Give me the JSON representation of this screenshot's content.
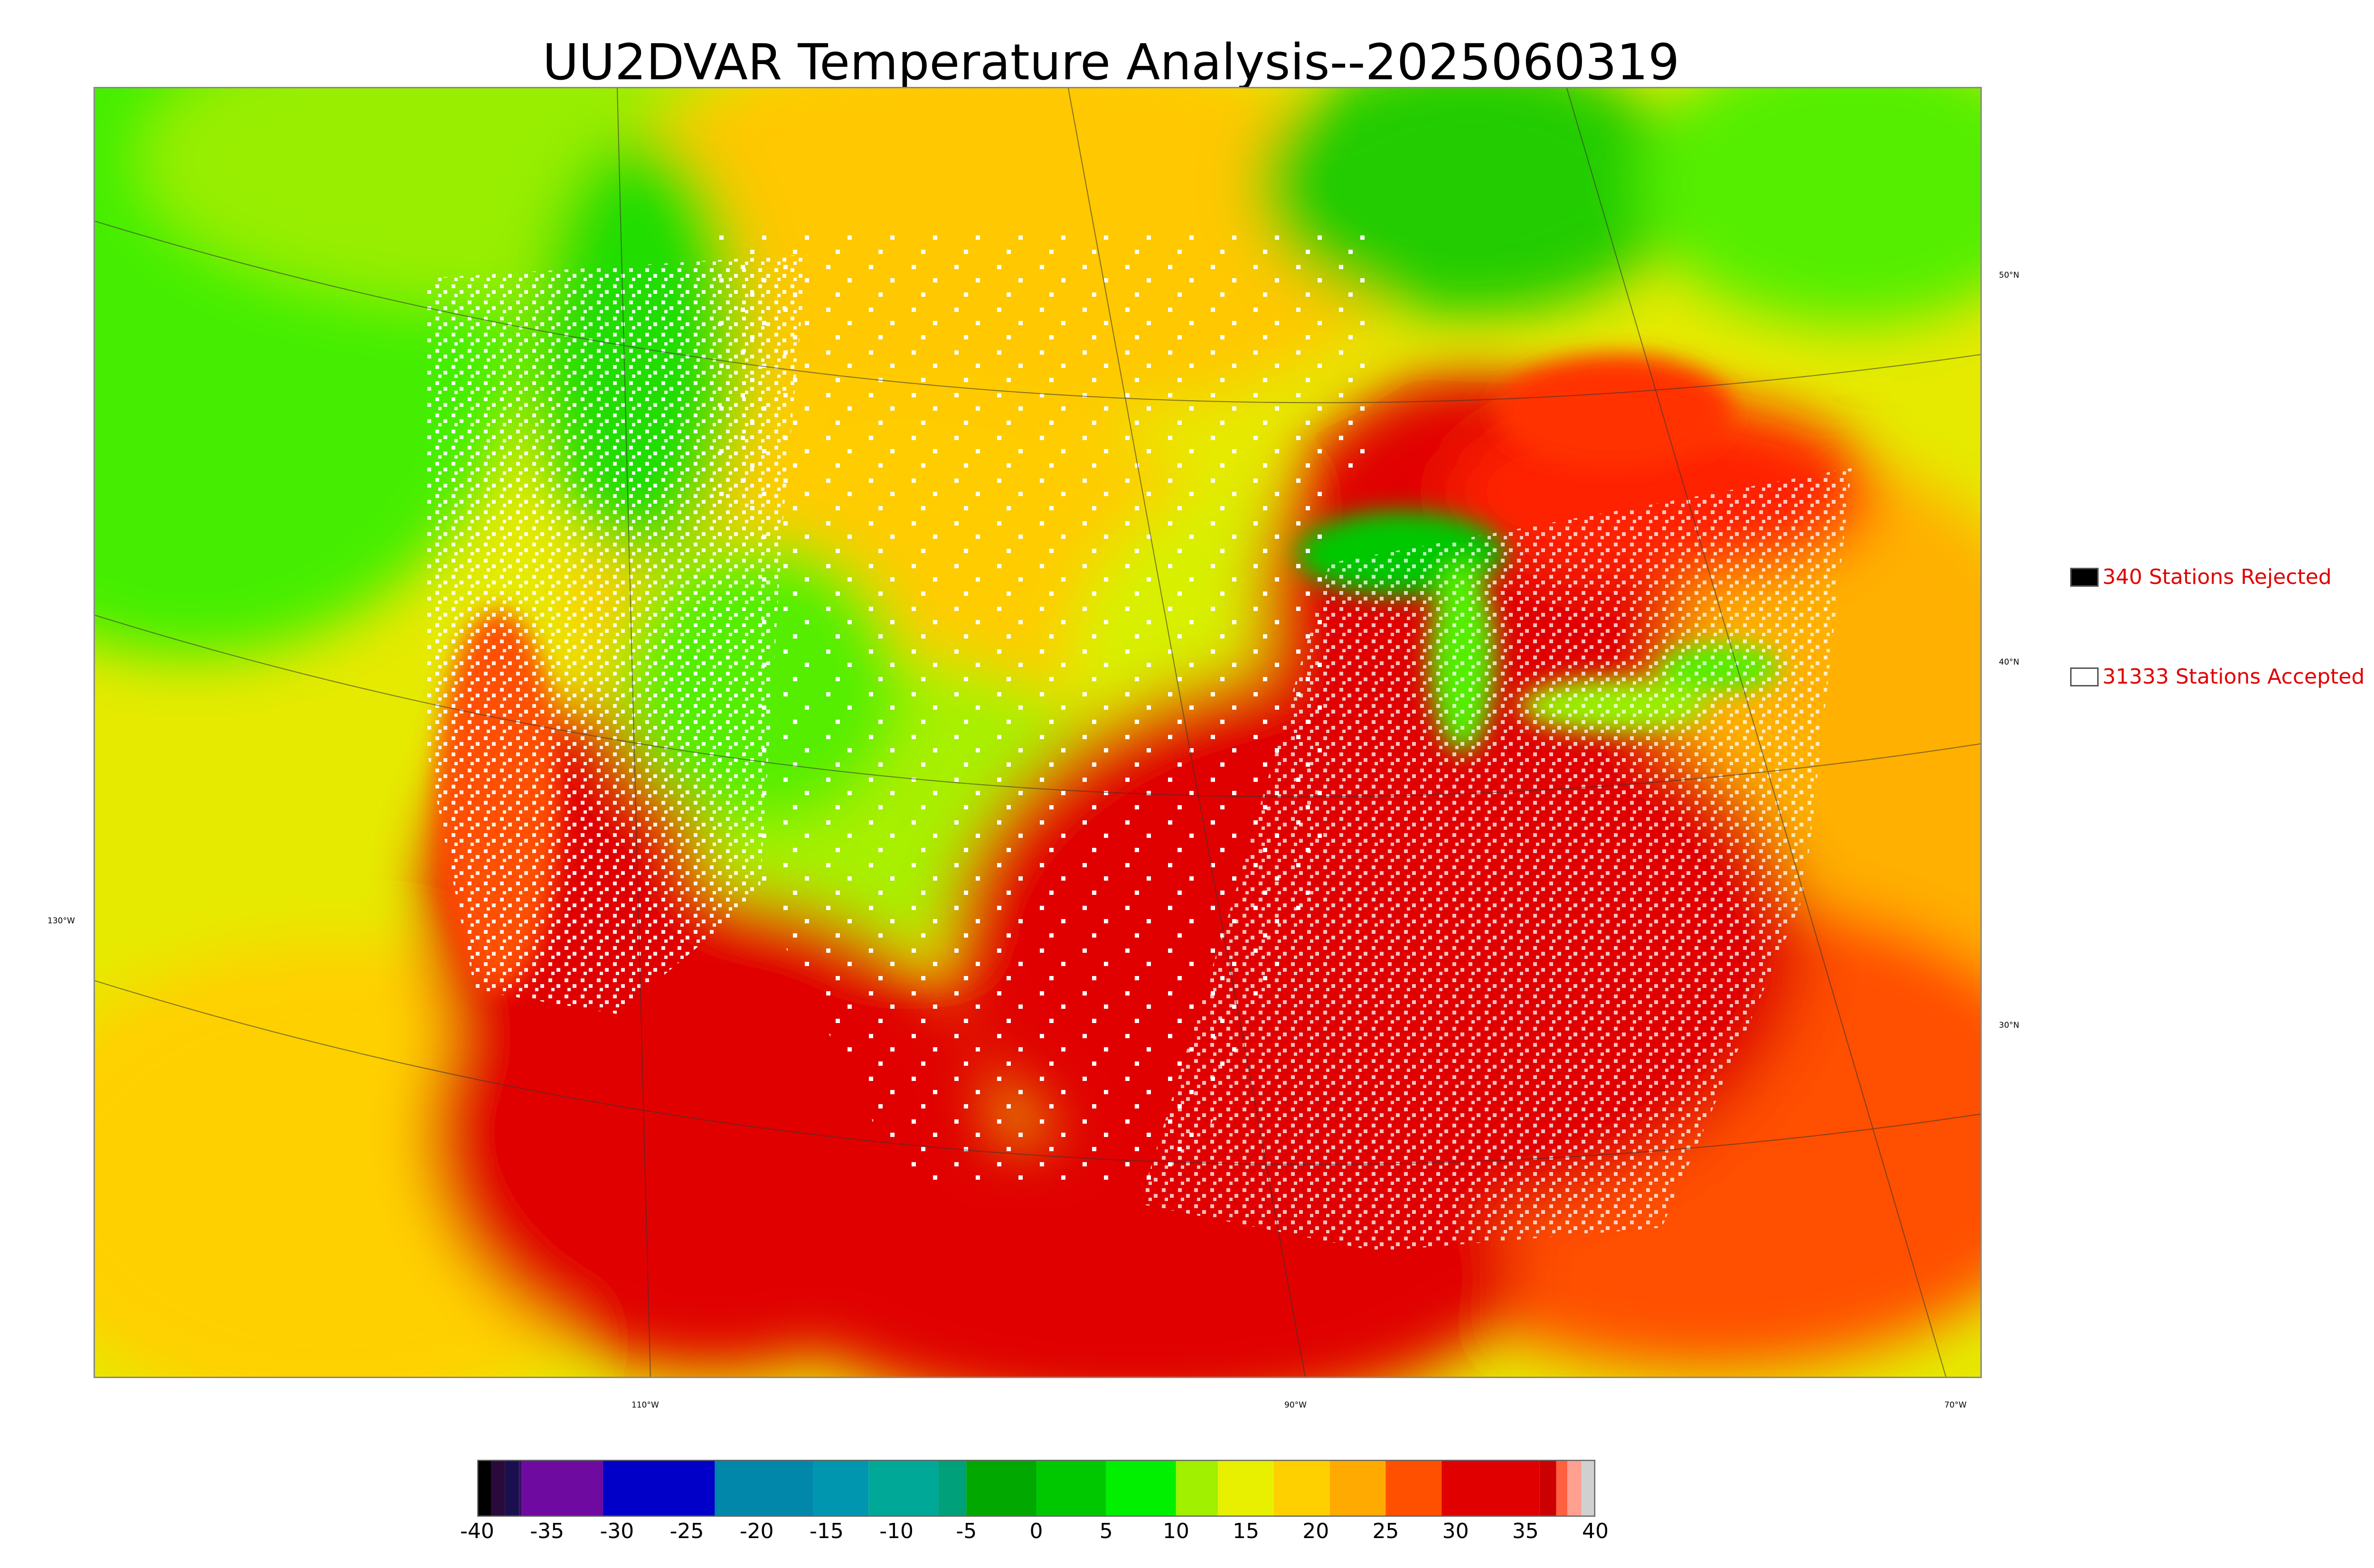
{
  "title": "UU2DVAR Temperature Analysis--2025060319",
  "graticule": {
    "lat_labels": [
      "50°N",
      "40°N",
      "30°N"
    ],
    "lon_labels": [
      "130°W",
      "110°W",
      "90°W",
      "70°W"
    ]
  },
  "legend": [
    {
      "swatch_color": "#000000",
      "text": "340 Stations Rejected"
    },
    {
      "swatch_color": "#ffffff",
      "text": "31333 Stations Accepted"
    }
  ],
  "colorbar": {
    "range": [
      -40,
      40
    ],
    "ticks": [
      "-40",
      "-35",
      "-30",
      "-25",
      "-20",
      "-15",
      "-10",
      "-5",
      "0",
      "5",
      "10",
      "15",
      "20",
      "25",
      "30",
      "35",
      "40"
    ],
    "segments": [
      {
        "from": -40,
        "to": -39,
        "color": "#000000"
      },
      {
        "from": -39,
        "to": -38,
        "color": "#2a0a3a"
      },
      {
        "from": -38,
        "to": -37,
        "color": "#1a1050"
      },
      {
        "from": -37,
        "to": -36.8,
        "color": "#3a1060"
      },
      {
        "from": -36.8,
        "to": -31,
        "color": "#6e0aa0"
      },
      {
        "from": -31,
        "to": -23,
        "color": "#0000c8"
      },
      {
        "from": -23,
        "to": -16,
        "color": "#0087aa"
      },
      {
        "from": -16,
        "to": -12,
        "color": "#0096b0"
      },
      {
        "from": -12,
        "to": -7,
        "color": "#00a898"
      },
      {
        "from": -7,
        "to": -5,
        "color": "#00a07a"
      },
      {
        "from": -5,
        "to": 0,
        "color": "#00a800"
      },
      {
        "from": 0,
        "to": 5,
        "color": "#00c800"
      },
      {
        "from": 5,
        "to": 10,
        "color": "#00f000"
      },
      {
        "from": 10,
        "to": 13,
        "color": "#a0f000"
      },
      {
        "from": 13,
        "to": 17,
        "color": "#e8f000"
      },
      {
        "from": 17,
        "to": 21,
        "color": "#ffd000"
      },
      {
        "from": 21,
        "to": 25,
        "color": "#ffaa00"
      },
      {
        "from": 25,
        "to": 29,
        "color": "#ff5000"
      },
      {
        "from": 29,
        "to": 36,
        "color": "#e00000"
      },
      {
        "from": 36,
        "to": 37.2,
        "color": "#cc0000"
      },
      {
        "from": 37.2,
        "to": 38,
        "color": "#ff6040"
      },
      {
        "from": 38,
        "to": 39,
        "color": "#ffa090"
      },
      {
        "from": 39,
        "to": 40,
        "color": "#d0d0d0"
      }
    ]
  }
}
